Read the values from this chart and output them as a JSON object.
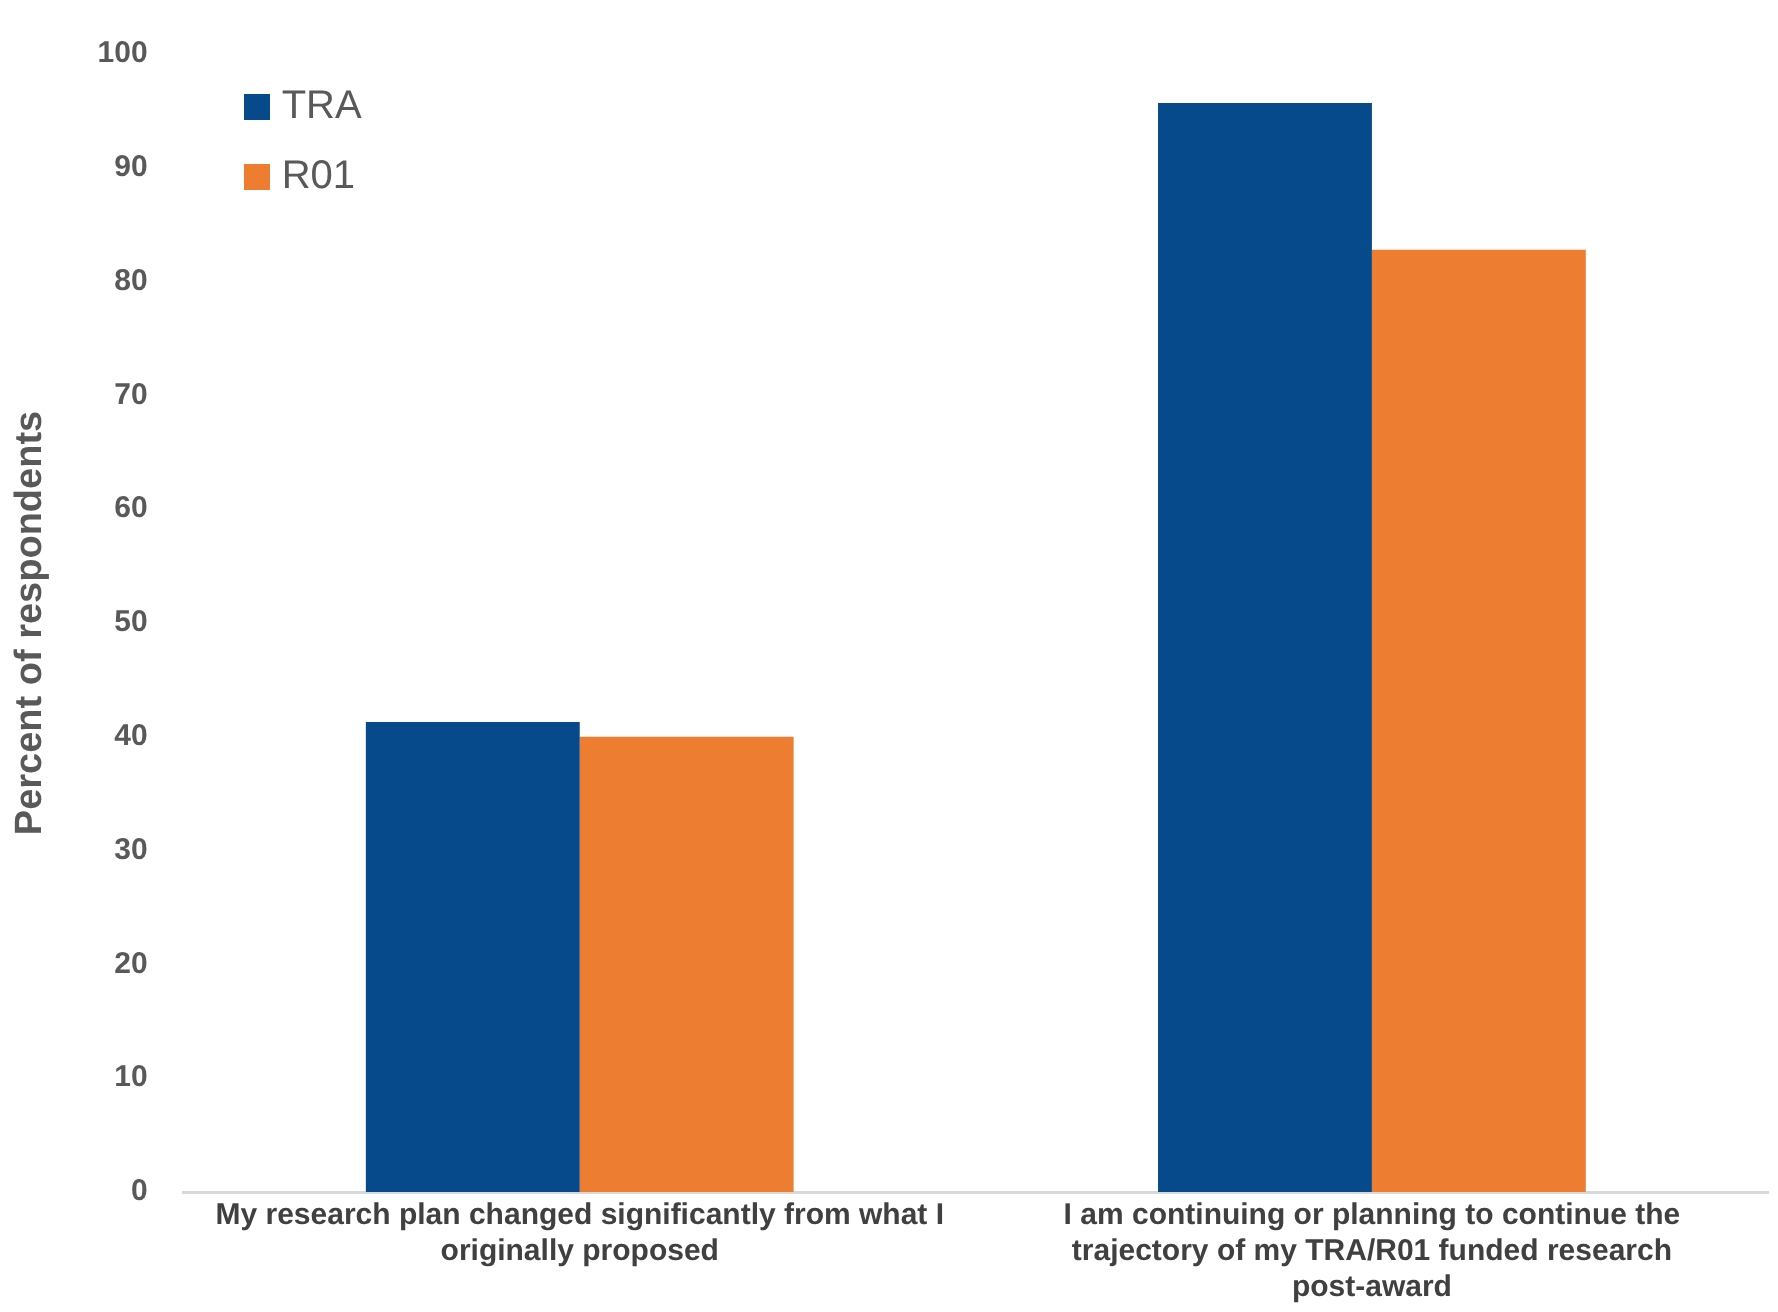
{
  "chart_data": {
    "type": "bar",
    "ylabel": "Percent of respondents",
    "categories": [
      "My research plan changed significantly from what I originally proposed",
      "I am continuing or planning to continue the trajectory of my TRA/R01 funded research post-award"
    ],
    "series": [
      {
        "name": "TRA",
        "color": "#064a8c",
        "values": [
          41.3,
          95.7
        ]
      },
      {
        "name": "R01",
        "color": "#ed7d31",
        "values": [
          40,
          82.8
        ]
      }
    ],
    "ylim": [
      0,
      100
    ],
    "yticks": [
      0,
      10,
      20,
      30,
      40,
      50,
      60,
      70,
      80,
      90,
      100
    ],
    "grid": false,
    "legend": "top left"
  }
}
